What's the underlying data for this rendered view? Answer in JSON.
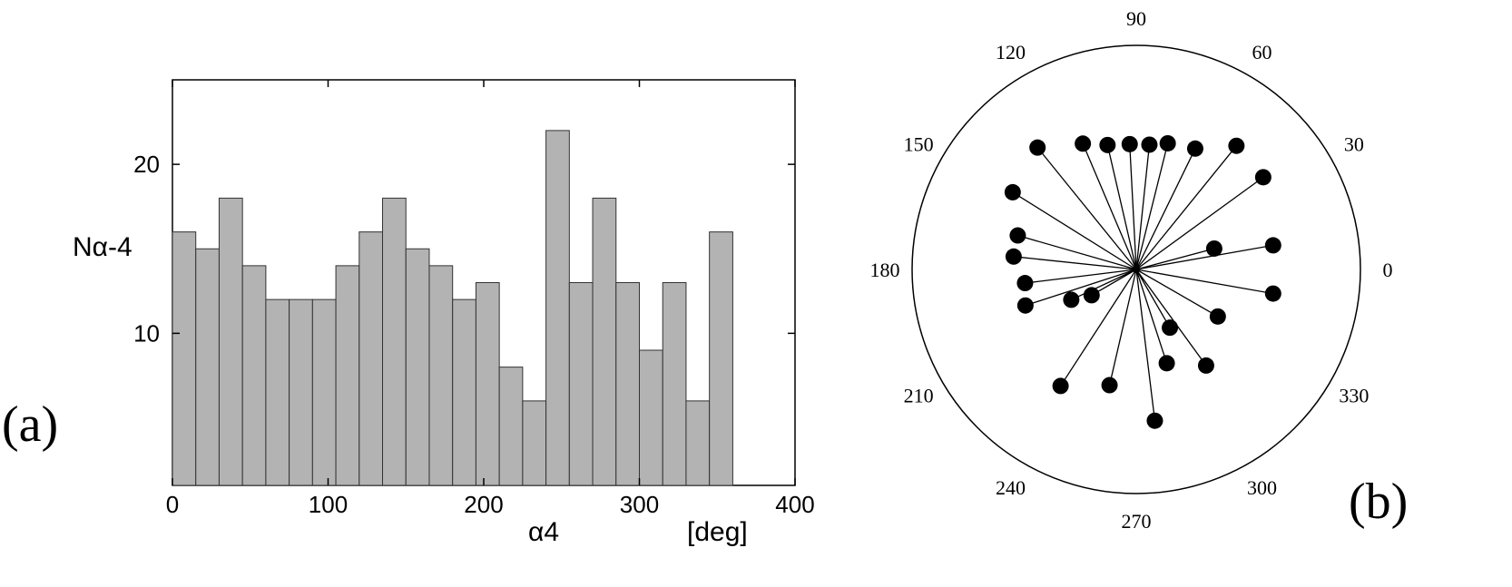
{
  "panels": {
    "a_label": "(a)",
    "b_label": "(b)"
  },
  "chart_data": [
    {
      "type": "bar",
      "title": "",
      "xlabel": "α4",
      "xunit": "[deg]",
      "ylabel": "Nα-4",
      "xlim": [
        0,
        400
      ],
      "ylim": [
        1,
        25
      ],
      "xticks": [
        "0",
        "100",
        "200",
        "300",
        "400"
      ],
      "yticks": [
        "10",
        "20"
      ],
      "bin_width": 15,
      "bin_starts": [
        0,
        15,
        30,
        45,
        60,
        75,
        90,
        105,
        120,
        135,
        150,
        165,
        180,
        195,
        210,
        225,
        240,
        255,
        270,
        285,
        300,
        315,
        330,
        345
      ],
      "values": [
        16,
        15,
        18,
        14,
        12,
        12,
        12,
        14,
        16,
        18,
        15,
        14,
        12,
        13,
        8,
        6,
        22,
        13,
        18,
        13,
        9,
        13,
        6,
        16
      ],
      "bar_color": "#b3b3b3",
      "grid": false
    },
    {
      "type": "scatter",
      "subtype": "polar",
      "title": "",
      "angle_ticks": [
        "0",
        "30",
        "60",
        "90",
        "120",
        "150",
        "180",
        "210",
        "240",
        "270",
        "300",
        "330"
      ],
      "radial_max": 1.0,
      "points": [
        {
          "angle": 15,
          "r": 0.36
        },
        {
          "angle": 10,
          "r": 0.62
        },
        {
          "angle": -10,
          "r": 0.62
        },
        {
          "angle": 36,
          "r": 0.7
        },
        {
          "angle": 51,
          "r": 0.71
        },
        {
          "angle": 64,
          "r": 0.6
        },
        {
          "angle": 76,
          "r": 0.58
        },
        {
          "angle": 84,
          "r": 0.56
        },
        {
          "angle": 93,
          "r": 0.56
        },
        {
          "angle": 103,
          "r": 0.57
        },
        {
          "angle": 113,
          "r": 0.61
        },
        {
          "angle": 129,
          "r": 0.7
        },
        {
          "angle": 148,
          "r": 0.65
        },
        {
          "angle": 164,
          "r": 0.55
        },
        {
          "angle": 174,
          "r": 0.55
        },
        {
          "angle": 187,
          "r": 0.5
        },
        {
          "angle": 198,
          "r": 0.52
        },
        {
          "angle": 205,
          "r": 0.32
        },
        {
          "angle": 210,
          "r": 0.23
        },
        {
          "angle": 237,
          "r": 0.62
        },
        {
          "angle": 257,
          "r": 0.53
        },
        {
          "angle": 277,
          "r": 0.68
        },
        {
          "angle": 288,
          "r": 0.44
        },
        {
          "angle": 300,
          "r": 0.3
        },
        {
          "angle": 306,
          "r": 0.53
        },
        {
          "angle": 330,
          "r": 0.42
        }
      ]
    }
  ]
}
